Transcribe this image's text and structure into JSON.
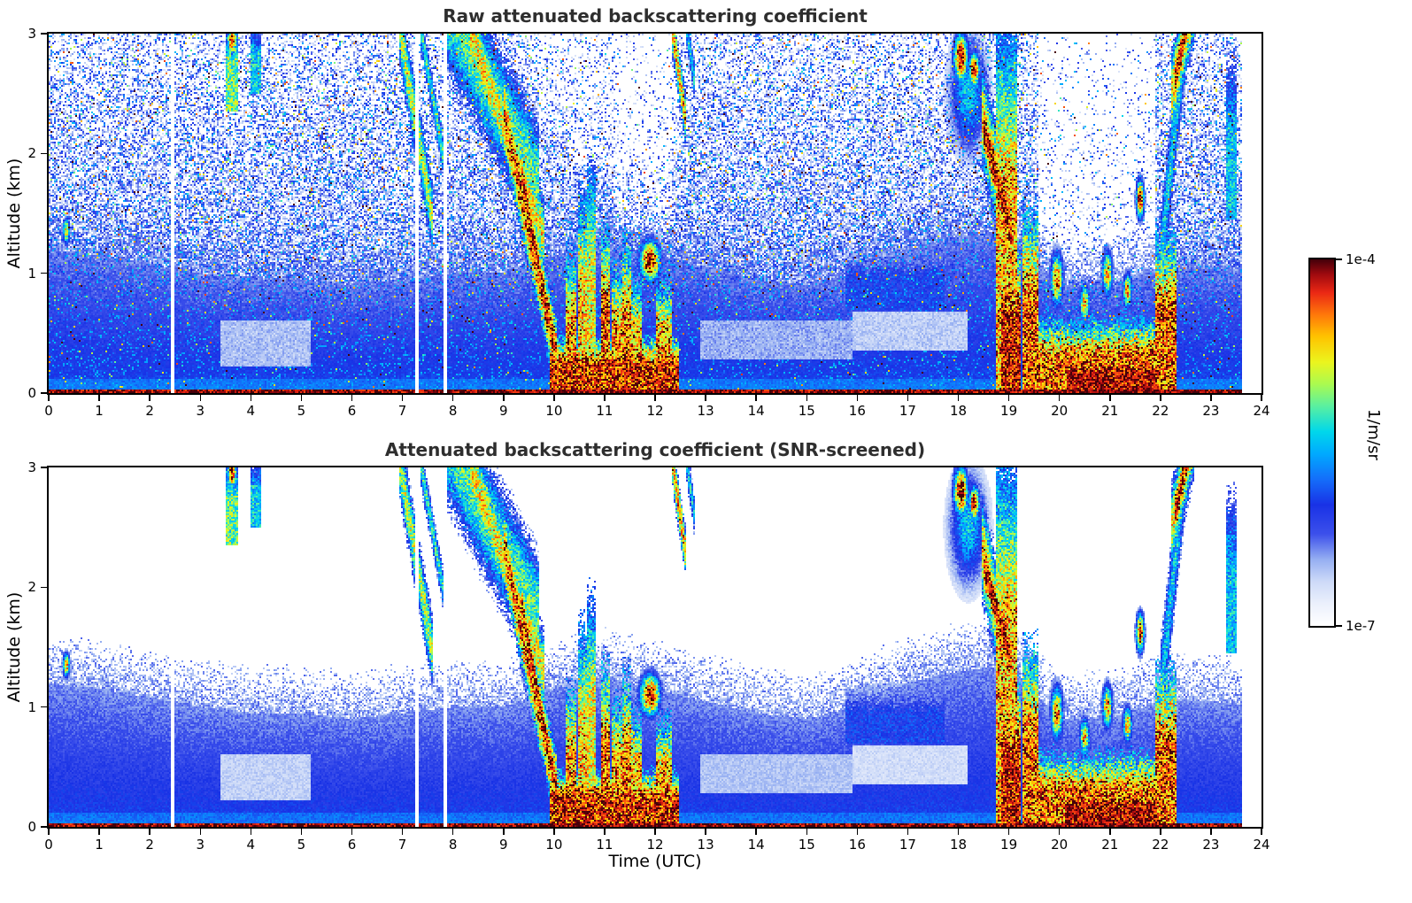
{
  "figure": {
    "background": "#ffffff"
  },
  "chart_data": [
    {
      "type": "heatmap",
      "title": "Raw attenuated backscattering coefficient",
      "xlabel": "",
      "ylabel": "Altitude (km)",
      "xlim": [
        0,
        24
      ],
      "ylim": [
        0,
        3
      ],
      "xticks": [
        0,
        1,
        2,
        3,
        4,
        5,
        6,
        7,
        8,
        9,
        10,
        11,
        12,
        13,
        14,
        15,
        16,
        17,
        18,
        19,
        20,
        21,
        22,
        23,
        24
      ],
      "yticks": [
        0,
        1,
        2,
        3
      ],
      "grid": false,
      "snr_screened": false,
      "value_scale": "log10",
      "value_min": "1e-7",
      "value_max": "1e-4",
      "value_units": "1/m/sr"
    },
    {
      "type": "heatmap",
      "title": "Attenuated backscattering coefficient (SNR-screened)",
      "xlabel": "Time (UTC)",
      "ylabel": "Altitude (km)",
      "xlim": [
        0,
        24
      ],
      "ylim": [
        0,
        3
      ],
      "xticks": [
        0,
        1,
        2,
        3,
        4,
        5,
        6,
        7,
        8,
        9,
        10,
        11,
        12,
        13,
        14,
        15,
        16,
        17,
        18,
        19,
        20,
        21,
        22,
        23,
        24
      ],
      "yticks": [
        0,
        1,
        2,
        3
      ],
      "grid": false,
      "snr_screened": true,
      "value_scale": "log10",
      "value_min": "1e-7",
      "value_max": "1e-4",
      "value_units": "1/m/sr"
    }
  ],
  "colorbar": {
    "max_label": "1e-4",
    "min_label": "1e-7",
    "units": "1/m/sr"
  },
  "colormap": [
    {
      "v": 0.0,
      "c": "#ffffff"
    },
    {
      "v": 0.06,
      "c": "#ebf0fc"
    },
    {
      "v": 0.12,
      "c": "#cddaf8"
    },
    {
      "v": 0.18,
      "c": "#96aff2"
    },
    {
      "v": 0.25,
      "c": "#3c50eb"
    },
    {
      "v": 0.33,
      "c": "#1932e6"
    },
    {
      "v": 0.4,
      "c": "#146efa"
    },
    {
      "v": 0.47,
      "c": "#00aaff"
    },
    {
      "v": 0.53,
      "c": "#00d7eb"
    },
    {
      "v": 0.6,
      "c": "#5af0a0"
    },
    {
      "v": 0.66,
      "c": "#aafa50"
    },
    {
      "v": 0.72,
      "c": "#ebf51e"
    },
    {
      "v": 0.79,
      "c": "#ffc300"
    },
    {
      "v": 0.85,
      "c": "#ff780a"
    },
    {
      "v": 0.91,
      "c": "#eb2814"
    },
    {
      "v": 0.96,
      "c": "#a00a0f"
    },
    {
      "v": 1.0,
      "c": "#46000a"
    }
  ],
  "heatmap_model": {
    "comment_units": "t in UTC hours, z in km, v normalized 0..1 over log10 1e-7..1e-4",
    "data_end_utc": 23.62,
    "gaps_utc": [
      2.45,
      7.3,
      7.85
    ],
    "screened_threshold": 0.055,
    "aerosol_top_km": [
      1.2,
      1.15,
      1.08,
      1.0,
      0.95,
      0.95,
      0.9,
      0.95,
      1.0,
      1.0,
      1.15,
      1.25,
      1.15,
      1.05,
      0.95,
      0.9,
      1.0,
      1.2,
      1.3,
      1.35,
      0.9,
      0.9,
      1.05,
      1.05,
      1.0
    ],
    "noise": {
      "density_z0": 1.02,
      "density_slope": 0.23,
      "bright_base": 0.015,
      "bright_slope": 0.06
    },
    "features": [
      {
        "type": "blob",
        "tc": 0.35,
        "zc": 1.35,
        "rt": 0.07,
        "rz": 0.1,
        "v": 0.8
      },
      {
        "type": "column",
        "t0": 3.53,
        "t1": 3.72,
        "z0": 2.35,
        "z1": 3.05,
        "v": 0.6
      },
      {
        "type": "blob",
        "tc": 3.63,
        "zc": 2.95,
        "rt": 0.09,
        "rz": 0.12,
        "v": 0.97
      },
      {
        "type": "column",
        "t0": 4.02,
        "t1": 4.18,
        "z0": 2.5,
        "z1": 3.05,
        "v": 0.5
      },
      {
        "type": "slant",
        "t0": 6.92,
        "z0": 3.1,
        "t1": 7.6,
        "z1": 1.45,
        "thick": 0.28,
        "v": 0.66
      },
      {
        "type": "slant",
        "t0": 7.35,
        "z0": 3.05,
        "t1": 7.8,
        "z1": 2.0,
        "thick": 0.16,
        "v": 0.55
      },
      {
        "type": "slant",
        "t0": 7.9,
        "z0": 3.2,
        "t1": 9.7,
        "z1": 1.75,
        "thick": 0.5,
        "v": 0.58
      },
      {
        "type": "slant",
        "t0": 8.35,
        "z0": 3.0,
        "t1": 9.8,
        "z1": 1.3,
        "thick": 0.3,
        "v": 0.72
      },
      {
        "type": "slant",
        "t0": 9.0,
        "z0": 2.35,
        "t1": 10.05,
        "z1": 0.3,
        "thick": 0.32,
        "v": 0.85
      },
      {
        "type": "slant",
        "t0": 9.35,
        "z0": 1.85,
        "t1": 10.02,
        "z1": 0.35,
        "thick": 0.17,
        "v": 0.94
      },
      {
        "type": "column",
        "t0": 9.95,
        "t1": 12.45,
        "z0": 0,
        "z1": 0.45,
        "v": 0.92
      },
      {
        "type": "column",
        "t0": 10.25,
        "t1": 10.42,
        "z0": 0,
        "z1": 1.15,
        "v": 0.8
      },
      {
        "type": "column",
        "t0": 10.5,
        "t1": 10.63,
        "z0": 0,
        "z1": 1.65,
        "v": 0.75
      },
      {
        "type": "column",
        "t0": 10.66,
        "t1": 10.79,
        "z0": 0,
        "z1": 1.9,
        "v": 0.7
      },
      {
        "type": "column",
        "t0": 10.95,
        "t1": 11.1,
        "z0": 0,
        "z1": 1.35,
        "v": 0.85
      },
      {
        "type": "column",
        "t0": 11.15,
        "t1": 11.32,
        "z0": 0,
        "z1": 1.05,
        "v": 0.8
      },
      {
        "type": "column",
        "t0": 11.36,
        "t1": 11.52,
        "z0": 0,
        "z1": 1.25,
        "v": 0.82
      },
      {
        "type": "column",
        "t0": 11.55,
        "t1": 11.7,
        "z0": 0,
        "z1": 0.95,
        "v": 0.78
      },
      {
        "type": "blob",
        "tc": 11.9,
        "zc": 1.1,
        "rt": 0.2,
        "rz": 0.17,
        "v": 1.0
      },
      {
        "type": "column",
        "t0": 12.05,
        "t1": 12.3,
        "z0": 0,
        "z1": 0.9,
        "v": 0.8
      },
      {
        "type": "slant",
        "t0": 12.32,
        "z0": 3.1,
        "t1": 12.6,
        "z1": 2.3,
        "thick": 0.2,
        "v": 0.78
      },
      {
        "type": "slant",
        "t0": 12.62,
        "z0": 3.05,
        "t1": 12.8,
        "z1": 2.55,
        "thick": 0.15,
        "v": 0.5
      },
      {
        "type": "column",
        "t0": 15.8,
        "t1": 17.7,
        "z0": 0.7,
        "z1": 1.15,
        "v": 0.32
      },
      {
        "type": "blob",
        "tc": 18.05,
        "zc": 2.8,
        "rt": 0.14,
        "rz": 0.2,
        "v": 1.0
      },
      {
        "type": "blob",
        "tc": 18.32,
        "zc": 2.7,
        "rt": 0.1,
        "rz": 0.14,
        "v": 0.98
      },
      {
        "type": "blob",
        "tc": 18.2,
        "zc": 2.5,
        "rt": 0.35,
        "rz": 0.45,
        "v": 0.5
      },
      {
        "type": "slant",
        "t0": 18.5,
        "z0": 2.2,
        "t1": 19.05,
        "z1": 1.35,
        "thick": 0.24,
        "v": 0.97
      },
      {
        "type": "slant",
        "t0": 18.45,
        "z0": 2.35,
        "t1": 19.1,
        "z1": 1.2,
        "thick": 0.42,
        "v": 0.75
      },
      {
        "type": "column",
        "t0": 18.75,
        "t1": 19.15,
        "z0": 0,
        "z1": 3.05,
        "v": 0.78
      },
      {
        "type": "column",
        "t0": 18.88,
        "t1": 19.22,
        "z0": 0,
        "z1": 1.15,
        "v": 0.96
      },
      {
        "type": "column",
        "t0": 19.28,
        "t1": 19.55,
        "z0": 0,
        "z1": 1.5,
        "v": 0.85
      },
      {
        "type": "column",
        "t0": 19.55,
        "t1": 21.95,
        "z0": 0,
        "z1": 0.6,
        "v": 0.85
      },
      {
        "type": "column",
        "t0": 20.15,
        "t1": 21.9,
        "z0": 0,
        "z1": 0.32,
        "v": 1.0
      },
      {
        "type": "blob",
        "tc": 19.95,
        "zc": 0.95,
        "rt": 0.12,
        "rz": 0.22,
        "v": 0.85
      },
      {
        "type": "blob",
        "tc": 20.5,
        "zc": 0.75,
        "rt": 0.1,
        "rz": 0.15,
        "v": 0.8
      },
      {
        "type": "blob",
        "tc": 20.95,
        "zc": 1.0,
        "rt": 0.1,
        "rz": 0.18,
        "v": 0.82
      },
      {
        "type": "blob",
        "tc": 21.35,
        "zc": 0.85,
        "rt": 0.09,
        "rz": 0.15,
        "v": 0.8
      },
      {
        "type": "blob",
        "tc": 21.6,
        "zc": 1.62,
        "rt": 0.08,
        "rz": 0.16,
        "v": 0.95
      },
      {
        "type": "column",
        "t0": 21.92,
        "t1": 22.3,
        "z0": 0,
        "z1": 1.3,
        "v": 0.85
      },
      {
        "type": "slant",
        "t0": 22.0,
        "z0": 1.1,
        "t1": 22.5,
        "z1": 3.05,
        "thick": 0.4,
        "v": 0.5
      },
      {
        "type": "slant",
        "t0": 22.28,
        "z0": 2.6,
        "t1": 22.62,
        "z1": 3.25,
        "thick": 0.2,
        "v": 0.97
      },
      {
        "type": "slant",
        "t0": 22.22,
        "z0": 2.5,
        "t1": 22.68,
        "z1": 3.3,
        "thick": 0.34,
        "v": 0.72
      },
      {
        "type": "column",
        "t0": 23.32,
        "t1": 23.5,
        "z0": 1.45,
        "z1": 2.75,
        "v": 0.48
      }
    ],
    "light_bands": [
      {
        "t0": 3.4,
        "t1": 5.2,
        "z0": 0.22,
        "z1": 0.6,
        "v": 0.1
      },
      {
        "t0": 12.9,
        "t1": 15.9,
        "z0": 0.28,
        "z1": 0.6,
        "v": 0.12
      },
      {
        "t0": 15.9,
        "t1": 18.2,
        "z0": 0.35,
        "z1": 0.68,
        "v": 0.08
      }
    ],
    "attenuation_shadows": [
      {
        "t0": 9.7,
        "t1": 10.35,
        "z0": 2.2,
        "z1": 3.2,
        "factor": 0.6
      },
      {
        "t0": 10.35,
        "t1": 12.5,
        "z0": 1.9,
        "z1": 3.2,
        "factor": 0.5
      },
      {
        "t0": 11.2,
        "t1": 12.35,
        "z0": 1.35,
        "z1": 3.2,
        "factor": 0.55
      },
      {
        "t0": 19.6,
        "t1": 21.9,
        "z0": 0.95,
        "z1": 3.2,
        "factor": 0.2
      }
    ]
  }
}
